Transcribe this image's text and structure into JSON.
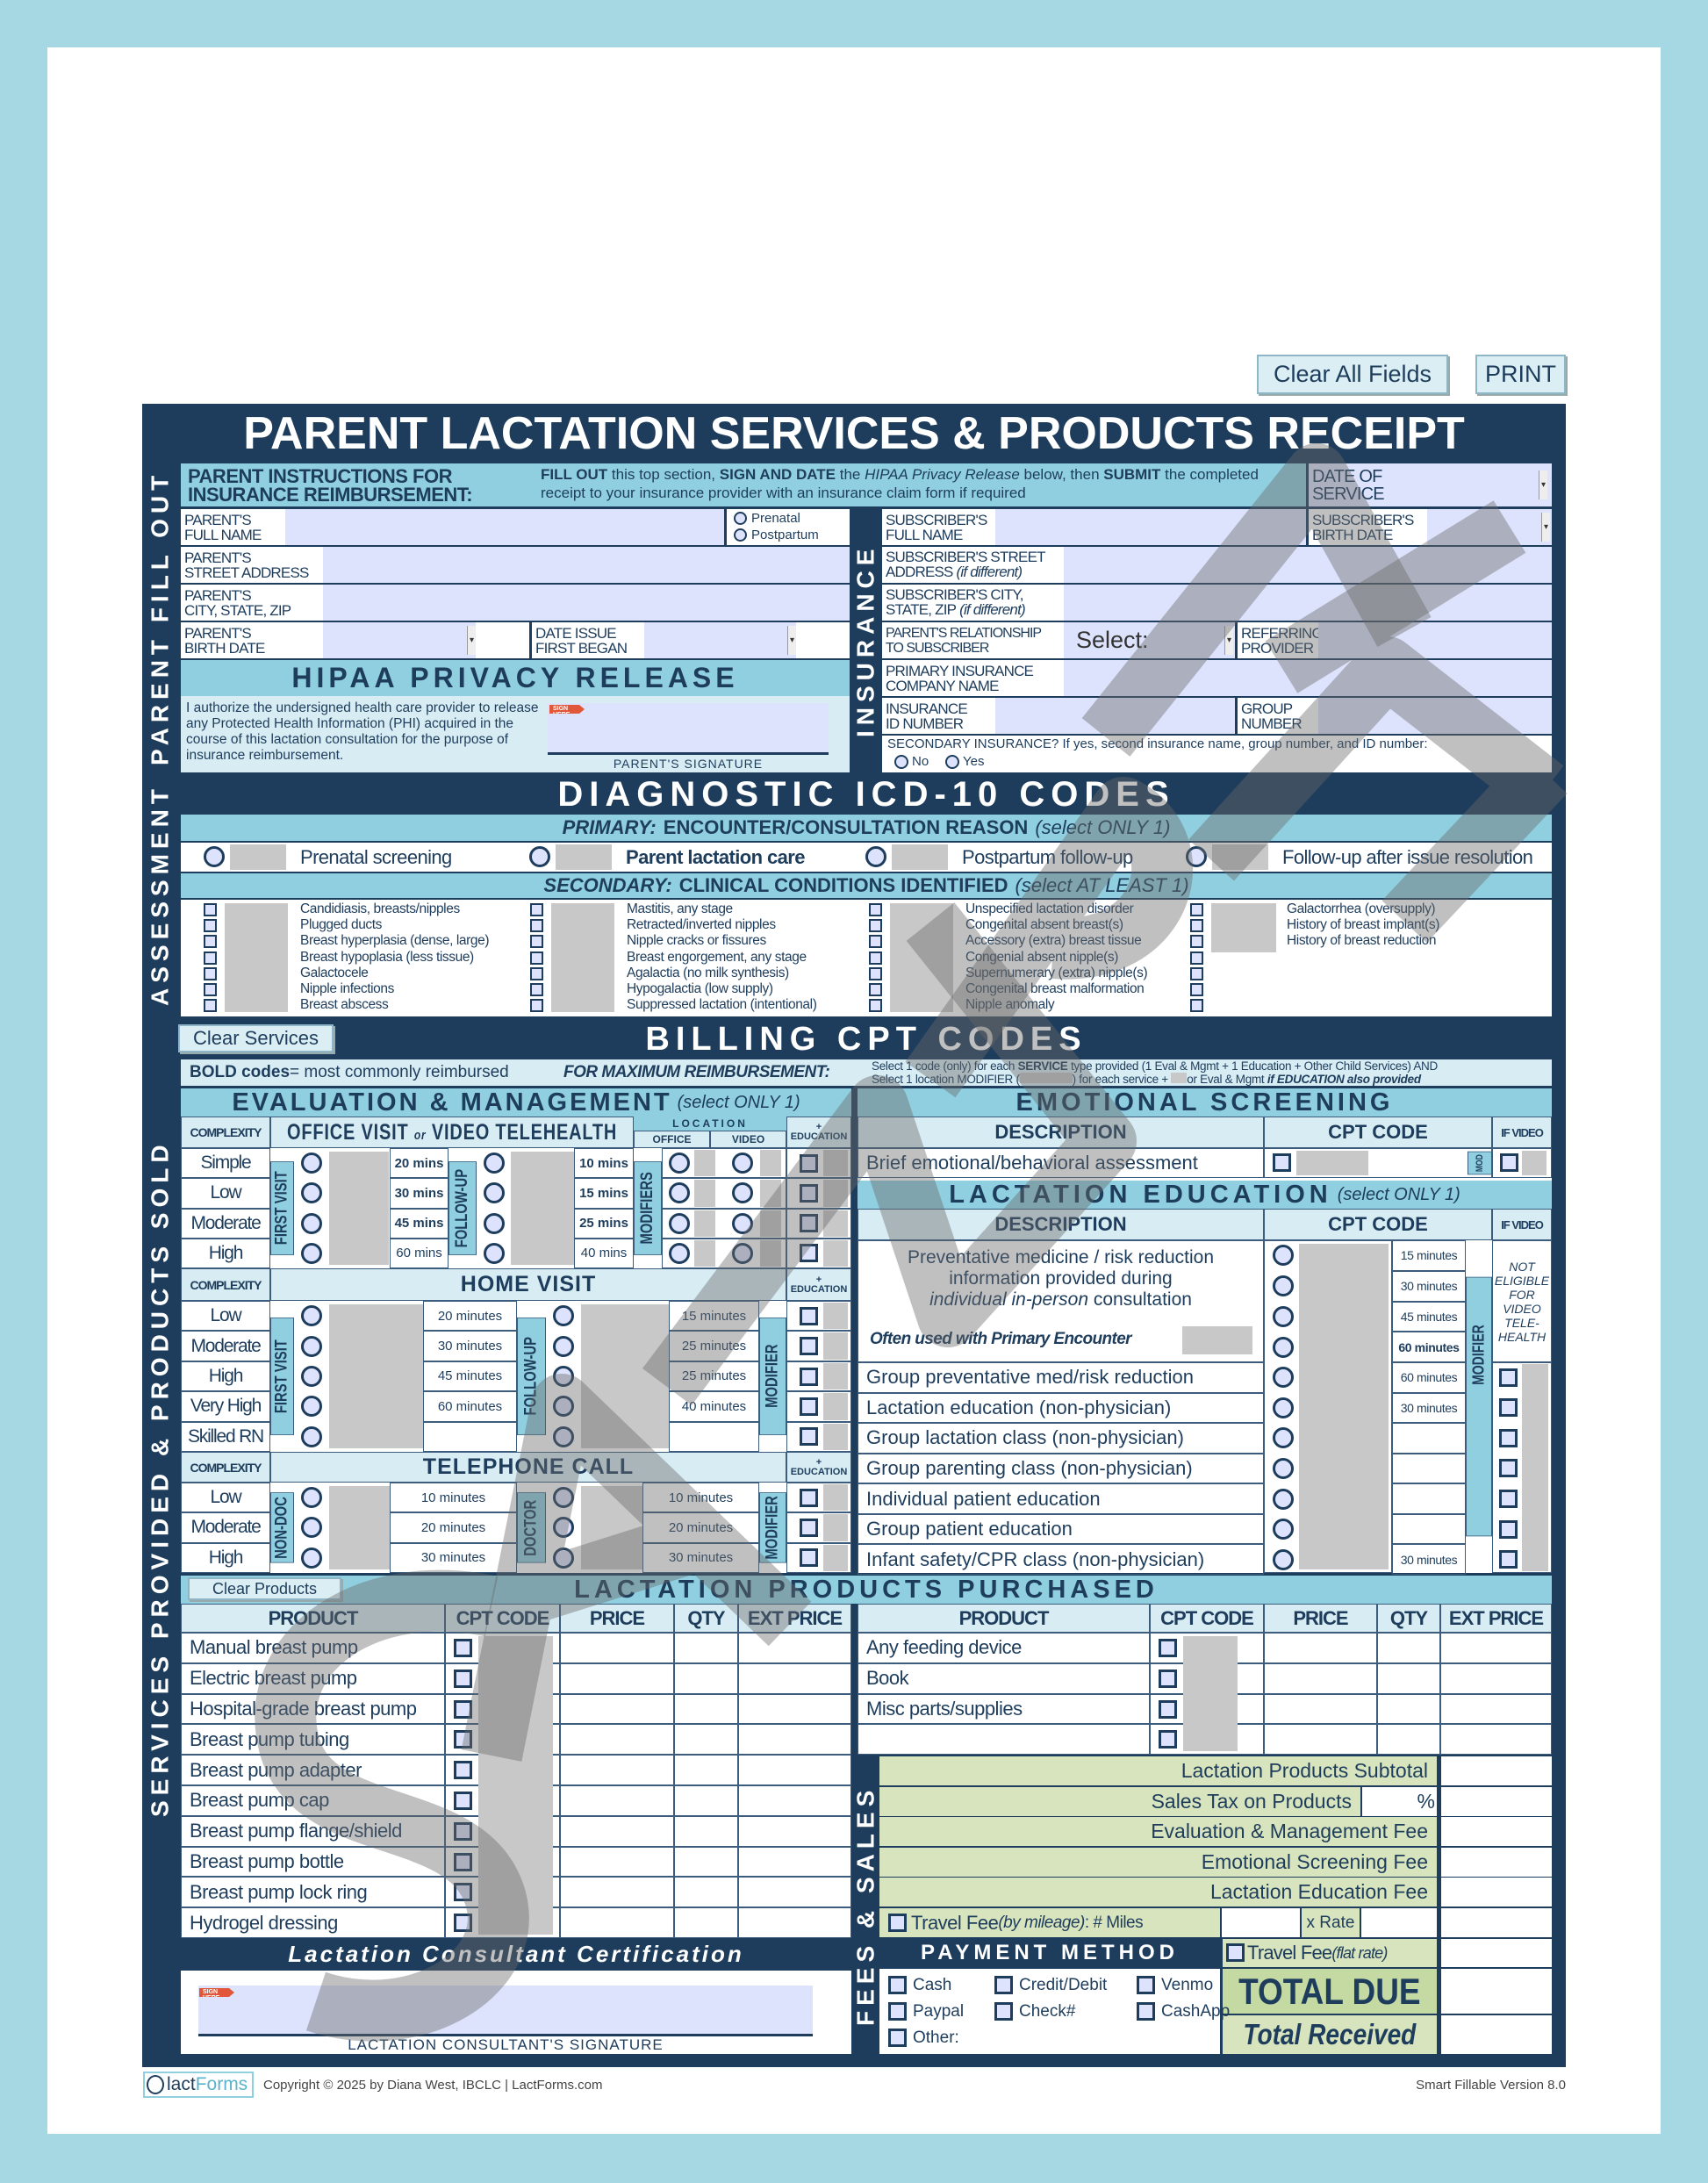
{
  "toolbar": {
    "clear_all": "Clear All Fields",
    "print": "PRINT"
  },
  "title": "PARENT LACTATION SERVICES & PRODUCTS RECEIPT",
  "watermark": "SAMPLE",
  "side_labels": {
    "parent": "PARENT FILL OUT",
    "insurance": "INSURANCE",
    "assessment": "ASSESSMENT",
    "services": "SERVICES PROVIDED & PRODUCTS SOLD",
    "fees": "FEES & SALES"
  },
  "instructions": {
    "heading": "PARENT INSTRUCTIONS FOR\nINSURANCE REIMBURSEMENT:",
    "fill_out": "FILL OUT",
    "t1": " this top section, ",
    "sign_date": "SIGN AND DATE",
    "t2": " the ",
    "hipaa": "HIPAA Privacy Release",
    "t3": " below, then ",
    "submit": "SUBMIT",
    "t4": " the completed receipt to your insurance provider with an insurance claim form if required"
  },
  "parent": {
    "full_name": "PARENT'S\nFULL NAME",
    "prenatal": "Prenatal",
    "postpartum": "Postpartum",
    "street": "PARENT'S\nSTREET ADDRESS",
    "city": "PARENT'S\nCITY, STATE, ZIP",
    "birth_date": "PARENT'S\nBIRTH DATE",
    "date_issue": "DATE ISSUE\nFIRST BEGAN"
  },
  "insurance": {
    "date_of_service": "DATE OF\nSERVICE",
    "sub_name": "SUBSCRIBER'S\nFULL NAME",
    "sub_birth": "SUBSCRIBER'S\nBIRTH DATE",
    "sub_street": "SUBSCRIBER'S STREET\nADDRESS",
    "sub_city": "SUBSCRIBER'S CITY,\nSTATE, ZIP",
    "if_different": " (if different)",
    "relationship": "PARENT'S RELATIONSHIP\nTO SUBSCRIBER",
    "relationship_value": "Select:",
    "referring": "REFERRING\nPROVIDER",
    "company": "PRIMARY INSURANCE\nCOMPANY NAME",
    "id": "INSURANCE\nID NUMBER",
    "group": "GROUP\nNUMBER",
    "secondary": "SECONDARY INSURANCE?  If yes, second insurance name, group number, and ID number:",
    "no": "No",
    "yes": "Yes"
  },
  "hipaa": {
    "heading": "HIPAA PRIVACY RELEASE",
    "text": "I authorize the undersigned health care provider to release any Protected Health Information (PHI) acquired in the course of this lactation consultation for the purpose of insurance reimbursement.",
    "sign_here": "SIGN HERE",
    "signature_label": "PARENT'S SIGNATURE"
  },
  "diagnostic": {
    "title": "DIAGNOSTIC ICD-10 CODES",
    "primary_label": "PRIMARY:",
    "primary_text": "ENCOUNTER/CONSULTATION REASON",
    "primary_note": "(select ONLY 1)",
    "primary_options": [
      "Prenatal screening",
      "Parent lactation care",
      "Postpartum follow-up",
      "Follow-up after issue resolution"
    ],
    "secondary_label": "SECONDARY:",
    "secondary_text": "CLINICAL CONDITIONS IDENTIFIED",
    "secondary_note": "(select AT LEAST 1)",
    "secondary_groups": [
      [
        "Candidiasis, breasts/nipples",
        "Plugged ducts",
        "Breast hyperplasia (dense, large)",
        "Breast hypoplasia (less tissue)",
        "Galactocele",
        "Nipple infections",
        "Breast abscess"
      ],
      [
        "Mastitis, any stage",
        "Retracted/inverted nipples",
        "Nipple cracks or fissures",
        "Breast engorgement, any stage",
        "Agalactia (no milk synthesis)",
        "Hypogalactia (low supply)",
        "Suppressed lactation (intentional)"
      ],
      [
        "Unspecified lactation disorder",
        "Congenital absent breast(s)",
        "Accessory (extra) breast tissue",
        "Congenial absent nipple(s)",
        "Supernumerary (extra) nipple(s)",
        "Congenital breast malformation",
        "Nipple anomaly"
      ],
      [
        "Galactorrhea (oversupply)",
        "History of breast implant(s)",
        "History of breast reduction",
        "",
        "",
        "",
        ""
      ]
    ]
  },
  "billing": {
    "clear_services": "Clear Services",
    "title": "BILLING CPT CODES",
    "bold_codes": "BOLD codes",
    "bold_rest": " = most commonly reimbursed",
    "max": "FOR MAXIMUM REIMBURSEMENT:",
    "l1a": "Select 1 code (only) for each ",
    "l1b": "SERVICE",
    "l1c": " type provided (1 Eval & Mgmt + 1 Education + Other Child Services) AND",
    "l2a": "Select 1 location MODIFIER (",
    "l2b": ") for each service + ",
    "l2c": "or Eval & Mgmt ",
    "l2d": "if EDUCATION also provided"
  },
  "em": {
    "title": "EVALUATION & MANAGEMENT",
    "note": " (select ONLY 1)",
    "complexity": "COMPLEXITY",
    "education": "+\nEDUCATION",
    "office_title_a": "OFFICE VISIT ",
    "office_title_or": "or",
    "office_title_b": " VIDEO TELEHEALTH",
    "location": "LOCATION",
    "office": "OFFICE",
    "video": "VIDEO",
    "first_visit": "FIRST VISIT",
    "follow_up": "FOLLOW-UP",
    "modifiers": "MODIFIERS",
    "modifier": "MODIFIER",
    "office_rows": [
      "Simple",
      "Low",
      "Moderate",
      "High"
    ],
    "office_first": [
      "20 mins",
      "30 mins",
      "45 mins",
      "60 mins"
    ],
    "office_follow": [
      "10 mins",
      "15 mins",
      "25 mins",
      "40 mins"
    ],
    "home_title": "HOME VISIT",
    "home_rows": [
      "Low",
      "Moderate",
      "High",
      "Very High",
      "Skilled RN"
    ],
    "home_first": [
      "20 minutes",
      "30 minutes",
      "45 minutes",
      "60 minutes",
      ""
    ],
    "home_follow": [
      "15 minutes",
      "25 minutes",
      "25 minutes",
      "40 minutes",
      ""
    ],
    "tel_title": "TELEPHONE CALL",
    "tel_rows": [
      "Low",
      "Moderate",
      "High"
    ],
    "non_doc": "NON-DOC",
    "doctor": "DOCTOR",
    "tel_nondoc": [
      "10 minutes",
      "20 minutes",
      "30 minutes"
    ],
    "tel_doctor": [
      "10 minutes",
      "20 minutes",
      "30 minutes"
    ]
  },
  "emotional": {
    "title": "EMOTIONAL SCREENING",
    "description": "DESCRIPTION",
    "cpt": "CPT CODE",
    "if_video": "IF VIDEO",
    "item": "Brief emotional/behavioral assessment",
    "mod": "MOD"
  },
  "education": {
    "title": "LACTATION EDUCATION",
    "note": " (select ONLY 1)",
    "description": "DESCRIPTION",
    "cpt": "CPT CODE",
    "if_video": "IF VIDEO",
    "preventative_a": "Preventative medicine / risk reduction\ninformation provided during",
    "preventative_b": "individual in-person",
    "preventative_c": " consultation",
    "often": "Often used with Primary Encounter",
    "not_eligible": "NOT\nELIGIBLE\nFOR\nVIDEO\nTELE-\nHEALTH",
    "modifier": "MODIFIER",
    "items": [
      "Group preventative med/risk reduction",
      "Lactation education (non-physician)",
      "Group lactation class (non-physician)",
      "Group parenting class (non-physician)",
      "Individual patient education",
      "Group patient education",
      "Infant safety/CPR class (non-physician)"
    ],
    "minutes": [
      "15 minutes",
      "30 minutes",
      "45 minutes",
      "60 minutes",
      "60 minutes",
      "30 minutes",
      "",
      "",
      "",
      "",
      "30 minutes"
    ]
  },
  "products": {
    "clear": "Clear Products",
    "title": "LACTATION PRODUCTS PURCHASED",
    "headers": [
      "PRODUCT",
      "CPT CODE",
      "PRICE",
      "QTY",
      "EXT PRICE"
    ],
    "left": [
      "Manual breast pump",
      "Electric breast pump",
      "Hospital-grade breast pump",
      "Breast pump tubing",
      "Breast pump adapter",
      "Breast pump cap",
      "Breast pump flange/shield",
      "Breast pump bottle",
      "Breast pump lock ring",
      "Hydrogel dressing"
    ],
    "right": [
      "Any feeding device",
      "Book",
      "Misc parts/supplies",
      ""
    ]
  },
  "fees": {
    "subtotal": "Lactation Products Subtotal",
    "sales_tax": "Sales Tax on Products",
    "percent": "%",
    "em_fee": "Evaluation & Management Fee",
    "emo_fee": "Emotional Screening Fee",
    "edu_fee": "Lactation Education Fee",
    "travel": "Travel Fee",
    "by_mileage": " (by mileage)",
    "miles": ": # Miles",
    "x_rate": "x Rate",
    "flat": " (flat rate)",
    "total_due": "TOTAL DUE",
    "total_received": "Total Received"
  },
  "payment": {
    "heading": "PAYMENT METHOD",
    "options": [
      "Cash",
      "Credit/Debit",
      "Venmo",
      "Paypal",
      "Check#",
      "CashApp",
      "Other:"
    ]
  },
  "certification": {
    "title": "Lactation Consultant Certification",
    "sign_here": "SIGN HERE",
    "signature_label": "LACTATION CONSULTANT'S SIGNATURE"
  },
  "footer": {
    "logo_a": "lact",
    "logo_b": "Forms",
    "copyright": "Copyright © 2025 by Diana West, IBCLC  |  LactForms.com",
    "version": "Smart Fillable Version 8.0"
  },
  "colors": {
    "navy": "#1e3d5c",
    "light_blue": "#8fcfdf",
    "pale_blue": "#d7ecf3",
    "field": "#dde3fc",
    "fee_green": "#d7e4bd",
    "redacted": "#c8c8c8"
  }
}
